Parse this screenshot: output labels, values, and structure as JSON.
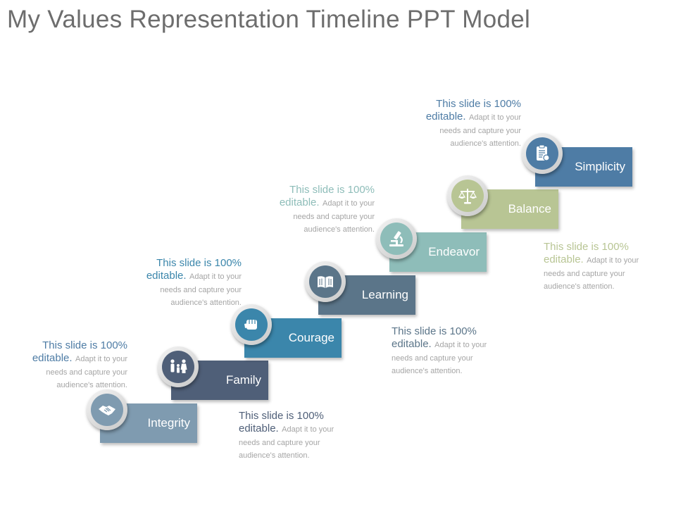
{
  "title": "My Values Representation Timeline PPT Model",
  "colors": {
    "integrity": "#7f9bb0",
    "family": "#4f5f78",
    "courage": "#3b86ab",
    "learning": "#5b7589",
    "endeavor": "#8ebdb9",
    "balance": "#b8c594",
    "simplicity": "#4e7ca5",
    "note_gray": "#a5a5a5"
  },
  "steps": [
    {
      "label": "Integrity",
      "icon": "handshake-icon"
    },
    {
      "label": "Family",
      "icon": "family-icon"
    },
    {
      "label": "Courage",
      "icon": "fist-icon"
    },
    {
      "label": "Learning",
      "icon": "book-icon"
    },
    {
      "label": "Endeavor",
      "icon": "microscope-icon"
    },
    {
      "label": "Balance",
      "icon": "scales-icon"
    },
    {
      "label": "Simplicity",
      "icon": "clipboard-icon"
    }
  ],
  "notes": [
    {
      "head": "This slide is 100% editable.",
      "body": "Adapt it to your needs and capture your audience's attention."
    },
    {
      "head": "This slide is 100% editable.",
      "body": "Adapt it to your needs and capture your audience's attention."
    },
    {
      "head": "This slide is 100% editable.",
      "body": "Adapt it to your needs and capture your audience's attention."
    },
    {
      "head": "This slide is 100% editable.",
      "body": "Adapt it to your needs and capture your audience's attention."
    },
    {
      "head": "This slide is 100% editable.",
      "body": "Adapt it to your needs and capture your audience's attention."
    },
    {
      "head": "This slide is 100% editable.",
      "body": "Adapt it to your needs and capture your audience's attention."
    },
    {
      "head": "This slide is 100% editable.",
      "body": "Adapt it to your needs and capture your audience's attention."
    }
  ]
}
